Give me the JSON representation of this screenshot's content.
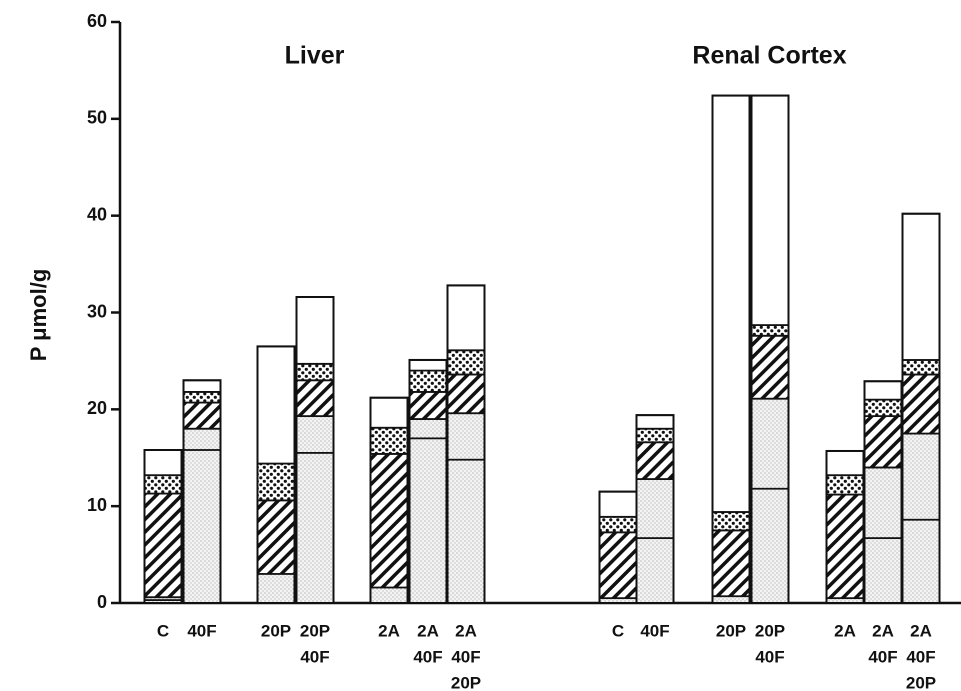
{
  "chart_data": {
    "type": "stacked_bar",
    "groups": [
      {
        "title": "Liver",
        "indices": [
          0,
          1,
          2,
          3,
          4,
          5,
          6
        ]
      },
      {
        "title": "Renal Cortex",
        "indices": [
          7,
          8,
          9,
          10,
          11,
          12,
          13
        ]
      }
    ],
    "y_label": "P μmol/g",
    "categories": [
      [
        "C"
      ],
      [
        "40F"
      ],
      [
        "20P"
      ],
      [
        "20P",
        "40F"
      ],
      [
        "2A"
      ],
      [
        "2A",
        "40F"
      ],
      [
        "2A",
        "40F",
        "20P"
      ],
      [
        "C"
      ],
      [
        "40F"
      ],
      [
        "20P"
      ],
      [
        "20P",
        "40F"
      ],
      [
        "2A"
      ],
      [
        "2A",
        "40F"
      ],
      [
        "2A",
        "40F",
        "20P"
      ]
    ],
    "series": [
      {
        "pattern": "stipple",
        "top_line": "dashed",
        "values": [
          0.3,
          15.8,
          3.0,
          15.5,
          1.6,
          17.0,
          14.8,
          0.5,
          6.7,
          0.7,
          11.8,
          0.5,
          6.7,
          8.6
        ]
      },
      {
        "pattern": "stipple",
        "values": [
          0.3,
          2.2,
          0,
          3.8,
          0,
          2.0,
          4.8,
          0,
          6.1,
          0,
          9.3,
          0,
          7.3,
          8.9
        ]
      },
      {
        "pattern": "hatch",
        "values": [
          10.7,
          2.7,
          7.6,
          3.7,
          13.8,
          2.8,
          4.0,
          6.8,
          3.8,
          6.8,
          6.5,
          10.7,
          5.3,
          6.1
        ]
      },
      {
        "pattern": "dots",
        "values": [
          1.9,
          1.1,
          3.8,
          1.7,
          2.7,
          2.2,
          2.5,
          1.6,
          1.4,
          1.9,
          1.1,
          2.0,
          1.7,
          1.5
        ]
      },
      {
        "pattern": "open",
        "values": [
          2.6,
          1.2,
          12.1,
          6.9,
          3.1,
          1.1,
          6.7,
          2.6,
          1.4,
          43.0,
          23.7,
          2.5,
          1.9,
          15.1
        ]
      }
    ],
    "ylim": [
      0,
      60
    ],
    "yticks": [
      0,
      10,
      20,
      30,
      40,
      50,
      60
    ]
  }
}
